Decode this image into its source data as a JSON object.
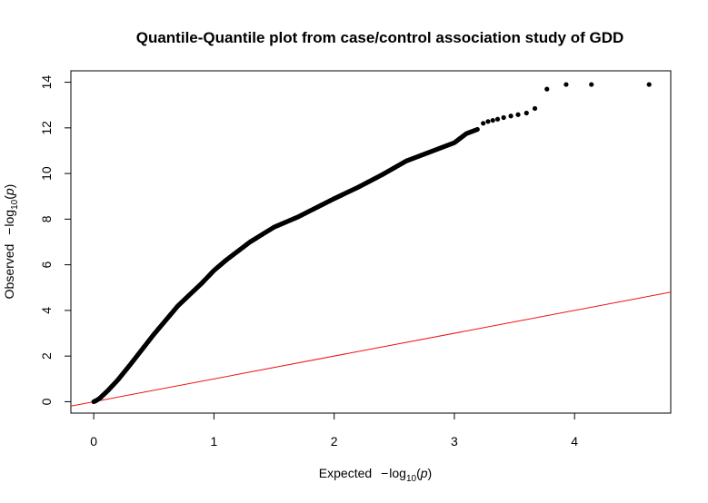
{
  "chart_data": {
    "type": "scatter",
    "title": "Quantile-Quantile plot from case/control association study of GDD",
    "xlabel": {
      "prefix": "Expected",
      "minus": "−",
      "log": "log",
      "base": "10",
      "var": "p"
    },
    "ylabel": {
      "prefix": "Observed",
      "minus": "−",
      "log": "log",
      "base": "10",
      "var": "p"
    },
    "xlim": [
      -0.19,
      4.8
    ],
    "ylim": [
      -0.5,
      14.5
    ],
    "x_ticks": [
      0,
      1,
      2,
      3,
      4
    ],
    "x_tick_labels": [
      "0",
      "1",
      "2",
      "3",
      "4"
    ],
    "y_ticks": [
      0,
      2,
      4,
      6,
      8,
      10,
      12,
      14
    ],
    "y_tick_labels": [
      "0",
      "2",
      "4",
      "6",
      "8",
      "10",
      "12",
      "14"
    ],
    "point_color": "#000000",
    "reference_line": {
      "type": "identity",
      "slope": 1,
      "intercept": 0,
      "color": "#ee1111"
    },
    "curve": {
      "x": [
        0,
        0.02,
        0.05,
        0.08,
        0.12,
        0.2,
        0.3,
        0.5,
        0.7,
        0.9,
        1.0,
        1.1,
        1.3,
        1.5,
        1.7,
        2.0,
        2.2,
        2.4,
        2.6,
        2.8,
        3.0,
        3.1,
        3.2
      ],
      "y": [
        0,
        0.05,
        0.15,
        0.3,
        0.5,
        0.95,
        1.6,
        2.95,
        4.2,
        5.2,
        5.75,
        6.2,
        7.0,
        7.65,
        8.1,
        8.9,
        9.4,
        9.95,
        10.55,
        10.95,
        11.35,
        11.75,
        11.95
      ]
    },
    "outliers": {
      "x": [
        3.24,
        3.28,
        3.32,
        3.36,
        3.41,
        3.47,
        3.53,
        3.6,
        3.67,
        3.77,
        3.93,
        4.14,
        4.62
      ],
      "y": [
        12.2,
        12.28,
        12.33,
        12.38,
        12.45,
        12.52,
        12.58,
        12.65,
        12.85,
        13.7,
        13.9,
        13.9,
        13.9
      ]
    }
  }
}
